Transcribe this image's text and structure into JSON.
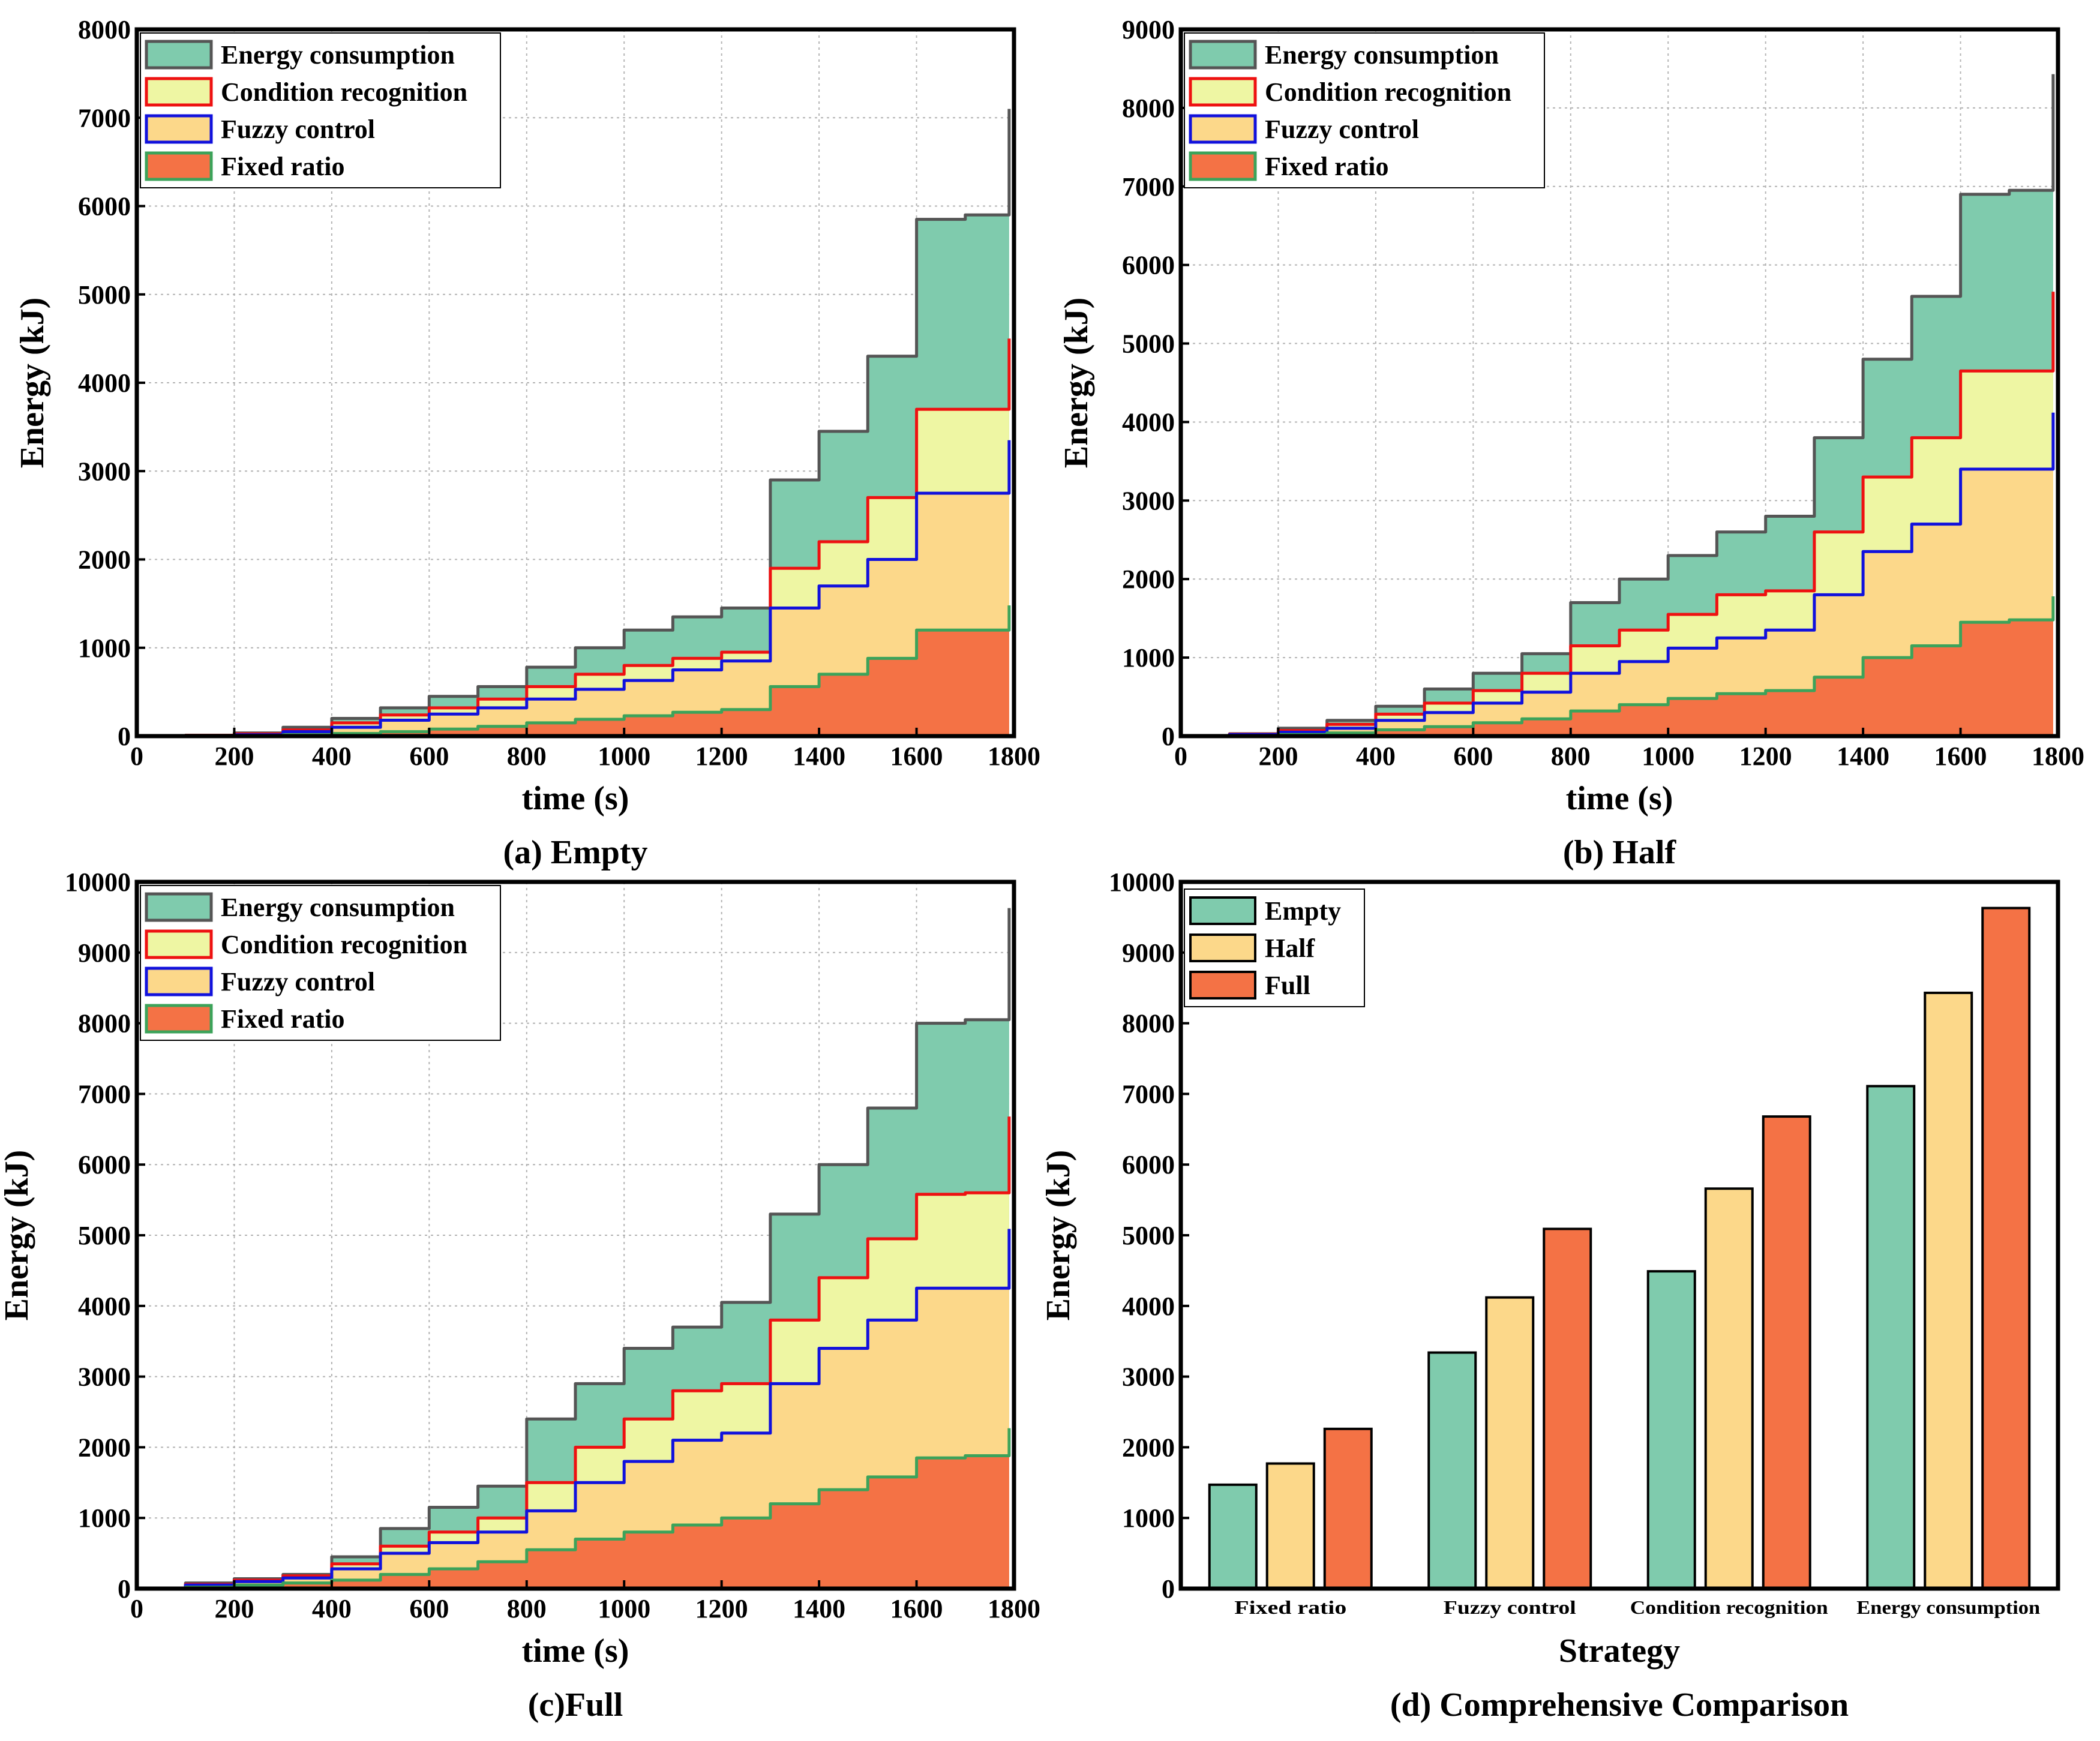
{
  "figure": {
    "colors": {
      "energy_consumption": "#7fcbad",
      "condition_recognition": "#eef6a3",
      "fuzzy_control": "#fcd88a",
      "fixed_ratio": "#f47245",
      "line_energy": "#555555",
      "line_condition": "#ee1111",
      "line_fuzzy": "#1111dd",
      "line_fixed": "#3ca35a"
    }
  },
  "chart_data": [
    {
      "type": "area",
      "caption": "(a) Empty",
      "xlabel": "time (s)",
      "ylabel": "Energy (kJ)",
      "xlim": [
        0,
        1800
      ],
      "ylim": [
        0,
        8000
      ],
      "xticks": [
        0,
        200,
        400,
        600,
        800,
        1000,
        1200,
        1400,
        1600,
        1800
      ],
      "yticks": [
        0,
        1000,
        2000,
        3000,
        4000,
        5000,
        6000,
        7000,
        8000
      ],
      "grid": true,
      "legend_position": "top-left",
      "x": [
        0,
        100,
        200,
        300,
        400,
        500,
        600,
        700,
        800,
        900,
        1000,
        1100,
        1200,
        1300,
        1400,
        1500,
        1600,
        1700,
        1790
      ],
      "series": [
        {
          "name": "Fixed ratio",
          "values": [
            0,
            2,
            5,
            15,
            30,
            50,
            80,
            110,
            150,
            190,
            230,
            270,
            300,
            560,
            700,
            880,
            1200,
            1200,
            1480
          ]
        },
        {
          "name": "Fuzzy control",
          "values": [
            0,
            5,
            15,
            50,
            100,
            180,
            250,
            320,
            420,
            530,
            630,
            750,
            850,
            1450,
            1700,
            2000,
            2750,
            2750,
            3350
          ]
        },
        {
          "name": "Condition recognition",
          "values": [
            0,
            8,
            25,
            70,
            150,
            240,
            320,
            420,
            560,
            700,
            800,
            880,
            950,
            1900,
            2200,
            2700,
            3700,
            3700,
            4500
          ]
        },
        {
          "name": "Energy consumption",
          "values": [
            0,
            10,
            35,
            100,
            200,
            320,
            450,
            560,
            780,
            1000,
            1200,
            1350,
            1450,
            2900,
            3450,
            4300,
            5850,
            5900,
            7100
          ]
        }
      ]
    },
    {
      "type": "area",
      "caption": "(b) Half",
      "xlabel": "time (s)",
      "ylabel": "Energy (kJ)",
      "xlim": [
        0,
        1800
      ],
      "ylim": [
        0,
        9000
      ],
      "xticks": [
        0,
        200,
        400,
        600,
        800,
        1000,
        1200,
        1400,
        1600,
        1800
      ],
      "yticks": [
        0,
        1000,
        2000,
        3000,
        4000,
        5000,
        6000,
        7000,
        8000,
        9000
      ],
      "grid": true,
      "legend_position": "top-left",
      "x": [
        0,
        100,
        200,
        300,
        400,
        500,
        600,
        700,
        800,
        900,
        1000,
        1100,
        1200,
        1300,
        1400,
        1500,
        1600,
        1700,
        1790
      ],
      "series": [
        {
          "name": "Fixed ratio",
          "values": [
            0,
            5,
            20,
            40,
            80,
            120,
            170,
            220,
            320,
            400,
            480,
            540,
            580,
            750,
            1000,
            1150,
            1450,
            1480,
            1780
          ]
        },
        {
          "name": "Fuzzy control",
          "values": [
            0,
            20,
            50,
            100,
            200,
            300,
            420,
            560,
            800,
            950,
            1120,
            1250,
            1350,
            1800,
            2350,
            2700,
            3400,
            3400,
            4120
          ]
        },
        {
          "name": "Condition recognition",
          "values": [
            0,
            25,
            70,
            150,
            280,
            420,
            580,
            800,
            1150,
            1350,
            1550,
            1800,
            1850,
            2600,
            3300,
            3800,
            4650,
            4650,
            5660
          ]
        },
        {
          "name": "Energy consumption",
          "values": [
            0,
            30,
            100,
            200,
            380,
            600,
            800,
            1050,
            1700,
            2000,
            2300,
            2600,
            2800,
            3800,
            4800,
            5600,
            6900,
            6950,
            8430
          ]
        }
      ]
    },
    {
      "type": "area",
      "caption": "(c)Full",
      "xlabel": "time (s)",
      "ylabel": "Energy (kJ)",
      "xlim": [
        0,
        1800
      ],
      "ylim": [
        0,
        10000
      ],
      "xticks": [
        0,
        200,
        400,
        600,
        800,
        1000,
        1200,
        1400,
        1600,
        1800
      ],
      "yticks": [
        0,
        1000,
        2000,
        3000,
        4000,
        5000,
        6000,
        7000,
        8000,
        9000,
        10000
      ],
      "grid": true,
      "legend_position": "top-left",
      "x": [
        0,
        100,
        200,
        300,
        400,
        500,
        600,
        700,
        800,
        900,
        1000,
        1100,
        1200,
        1300,
        1400,
        1500,
        1600,
        1700,
        1790
      ],
      "series": [
        {
          "name": "Fixed ratio",
          "values": [
            0,
            20,
            50,
            80,
            120,
            200,
            280,
            380,
            550,
            700,
            800,
            900,
            1000,
            1200,
            1400,
            1580,
            1850,
            1880,
            2270
          ]
        },
        {
          "name": "Fuzzy control",
          "values": [
            0,
            50,
            100,
            150,
            280,
            500,
            650,
            800,
            1100,
            1500,
            1800,
            2100,
            2200,
            2900,
            3400,
            3800,
            4250,
            4250,
            5090
          ]
        },
        {
          "name": "Condition recognition",
          "values": [
            0,
            60,
            120,
            180,
            350,
            600,
            800,
            1000,
            1500,
            2000,
            2400,
            2800,
            2900,
            3800,
            4400,
            4950,
            5580,
            5600,
            6680
          ]
        },
        {
          "name": "Energy consumption",
          "values": [
            0,
            80,
            140,
            200,
            450,
            850,
            1150,
            1450,
            2400,
            2900,
            3400,
            3700,
            4050,
            5300,
            6000,
            6800,
            8000,
            8050,
            9630
          ]
        }
      ]
    },
    {
      "type": "bar",
      "caption": "(d) Comprehensive Comparison",
      "xlabel": "Strategy",
      "ylabel": "Energy (kJ)",
      "ylim": [
        0,
        10000
      ],
      "yticks": [
        0,
        1000,
        2000,
        3000,
        4000,
        5000,
        6000,
        7000,
        8000,
        9000,
        10000
      ],
      "grid": false,
      "legend_position": "top-left",
      "categories": [
        "Fixed ratio",
        "Fuzzy control",
        "Condition recognition",
        "Energy consumption"
      ],
      "series": [
        {
          "name": "Empty",
          "values": [
            1470,
            3340,
            4490,
            7110
          ]
        },
        {
          "name": "Half",
          "values": [
            1770,
            4120,
            5660,
            8430
          ]
        },
        {
          "name": "Full",
          "values": [
            2260,
            5090,
            6680,
            9630
          ]
        }
      ]
    }
  ]
}
